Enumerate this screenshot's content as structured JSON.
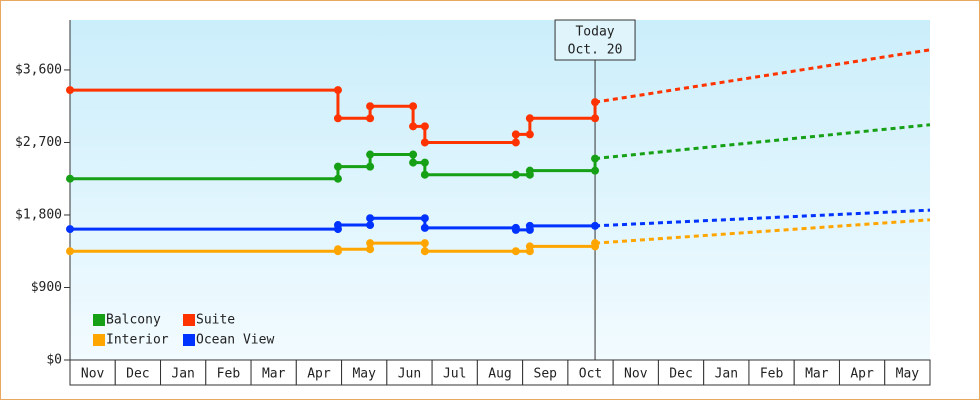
{
  "chart_data": {
    "type": "line",
    "xlim": [
      0,
      19
    ],
    "xticks": [
      {
        "value": 0.5,
        "label": "Nov"
      },
      {
        "value": 1.5,
        "label": "Dec"
      },
      {
        "value": 2.5,
        "label": "Jan"
      },
      {
        "value": 3.5,
        "label": "Feb"
      },
      {
        "value": 4.5,
        "label": "Mar"
      },
      {
        "value": 5.5,
        "label": "Apr"
      },
      {
        "value": 6.5,
        "label": "May"
      },
      {
        "value": 7.5,
        "label": "Jun"
      },
      {
        "value": 8.5,
        "label": "Jul"
      },
      {
        "value": 9.5,
        "label": "Aug"
      },
      {
        "value": 10.5,
        "label": "Sep"
      },
      {
        "value": 11.5,
        "label": "Oct"
      },
      {
        "value": 12.5,
        "label": "Nov"
      },
      {
        "value": 13.5,
        "label": "Dec"
      },
      {
        "value": 14.5,
        "label": "Jan"
      },
      {
        "value": 15.5,
        "label": "Feb"
      },
      {
        "value": 16.5,
        "label": "Mar"
      },
      {
        "value": 17.5,
        "label": "Apr"
      },
      {
        "value": 18.5,
        "label": "May"
      }
    ],
    "ylim": [
      0,
      4220
    ],
    "yticks": [
      {
        "value": 0,
        "label": "$0"
      },
      {
        "value": 900,
        "label": "$900"
      },
      {
        "value": 1800,
        "label": "$1,800"
      },
      {
        "value": 2700,
        "label": "$2,700"
      },
      {
        "value": 3600,
        "label": "$3,600"
      }
    ],
    "annotation": {
      "x": 11.6,
      "lines": [
        "Today",
        "Oct. 20"
      ]
    },
    "series": [
      {
        "name": "Balcony",
        "color": "#16a016",
        "x": [
          0,
          5.92,
          5.92,
          6.63,
          6.63,
          7.58,
          7.58,
          7.84,
          7.84,
          9.85,
          10.16,
          10.16,
          11.6,
          11.6
        ],
        "values": [
          2250,
          2250,
          2400,
          2400,
          2550,
          2550,
          2450,
          2450,
          2300,
          2300,
          2300,
          2350,
          2350,
          2500
        ],
        "projection_x": [
          11.6,
          19
        ],
        "projection_values": [
          2500,
          2920
        ]
      },
      {
        "name": "Suite",
        "color": "#ff3300",
        "x": [
          0,
          5.92,
          5.92,
          6.63,
          6.63,
          7.58,
          7.58,
          7.84,
          7.84,
          9.85,
          9.85,
          10.16,
          10.16,
          11.6,
          11.6
        ],
        "values": [
          3350,
          3350,
          3000,
          3000,
          3150,
          3150,
          2900,
          2900,
          2700,
          2700,
          2800,
          2800,
          3000,
          3000,
          3200
        ],
        "projection_x": [
          11.6,
          19
        ],
        "projection_values": [
          3200,
          3850
        ]
      },
      {
        "name": "Interior",
        "color": "#ffa500",
        "x": [
          0,
          5.92,
          5.92,
          6.63,
          6.63,
          7.84,
          7.84,
          9.85,
          10.16,
          10.16,
          11.6,
          11.6
        ],
        "values": [
          1350,
          1350,
          1375,
          1375,
          1450,
          1450,
          1350,
          1350,
          1350,
          1410,
          1410,
          1450
        ],
        "projection_x": [
          11.6,
          19
        ],
        "projection_values": [
          1450,
          1740
        ]
      },
      {
        "name": "Ocean View",
        "color": "#0033ff",
        "x": [
          0,
          5.92,
          5.92,
          6.63,
          6.63,
          7.84,
          7.84,
          9.85,
          9.85,
          10.16,
          10.16,
          11.6
        ],
        "values": [
          1625,
          1625,
          1675,
          1675,
          1760,
          1760,
          1640,
          1640,
          1615,
          1615,
          1665,
          1665
        ],
        "projection_x": [
          11.6,
          19
        ],
        "projection_values": [
          1665,
          1860
        ]
      }
    ]
  }
}
